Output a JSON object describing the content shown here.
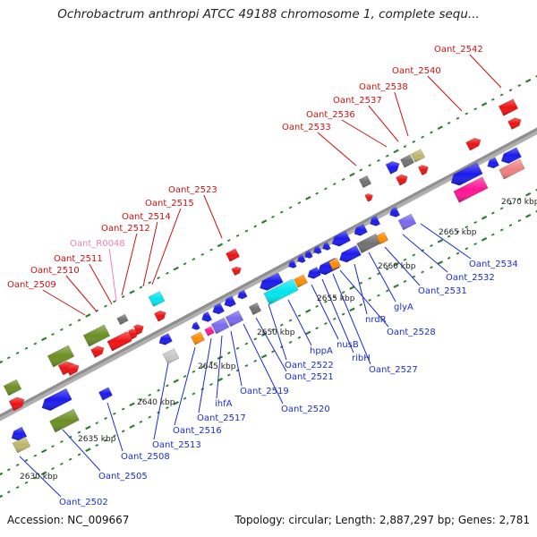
{
  "title": "Ochrobactrum anthropi ATCC 49188 chromosome 1, complete sequ...",
  "footer": {
    "accession": "Accession: NC_009667",
    "summary": "Topology: circular; Length: 2,887,297 bp; Genes: 2,781"
  },
  "colors": {
    "backbone": "#8f8f8f",
    "red_label": "#cc1111",
    "pink_label": "#f080b0",
    "blue_label": "#1a2ecc",
    "gene_blue": "#1a1aee",
    "gene_red": "#ee1111",
    "gene_green": "#6b8e23",
    "gene_khaki": "#bdb76b",
    "gene_cyan": "#00e5ee",
    "gene_purple": "#7b68ee",
    "gene_pink": "#ff1493",
    "gene_orange": "#ff8c00",
    "gene_gray": "#707070",
    "tick_green": "#2e7d32"
  },
  "scale_labels": [
    "2630 kbp",
    "2635 kbp",
    "2640 kbp",
    "2645 kbp",
    "2650 kbp",
    "2655 kbp",
    "2660 kbp",
    "2665 kbp",
    "2670 kbp"
  ],
  "top_labels": [
    {
      "text": "Oant_2509",
      "kind": "red"
    },
    {
      "text": "Oant_2510",
      "kind": "red"
    },
    {
      "text": "Oant_2511",
      "kind": "red"
    },
    {
      "text": "Oant_R0048",
      "kind": "pink"
    },
    {
      "text": "Oant_2512",
      "kind": "red"
    },
    {
      "text": "Oant_2514",
      "kind": "red"
    },
    {
      "text": "Oant_2515",
      "kind": "red"
    },
    {
      "text": "Oant_2523",
      "kind": "red"
    },
    {
      "text": "Oant_2533",
      "kind": "red"
    },
    {
      "text": "Oant_2536",
      "kind": "red"
    },
    {
      "text": "Oant_2537",
      "kind": "red"
    },
    {
      "text": "Oant_2538",
      "kind": "red"
    },
    {
      "text": "Oant_2540",
      "kind": "red"
    },
    {
      "text": "Oant_2542",
      "kind": "red"
    }
  ],
  "bottom_labels": [
    {
      "text": "Oant_2502"
    },
    {
      "text": "Oant_2505"
    },
    {
      "text": "Oant_2508"
    },
    {
      "text": "Oant_2513"
    },
    {
      "text": "Oant_2516"
    },
    {
      "text": "Oant_2517"
    },
    {
      "text": "ihfA"
    },
    {
      "text": "Oant_2519"
    },
    {
      "text": "Oant_2520"
    },
    {
      "text": "Oant_2521"
    },
    {
      "text": "Oant_2522"
    },
    {
      "text": "hppA"
    },
    {
      "text": "nusB"
    },
    {
      "text": "ribH"
    },
    {
      "text": "Oant_2527"
    },
    {
      "text": "Oant_2528"
    },
    {
      "text": "nrdR"
    },
    {
      "text": "glyA"
    },
    {
      "text": "Oant_2531"
    },
    {
      "text": "Oant_2532"
    },
    {
      "text": "Oant_2534"
    }
  ]
}
